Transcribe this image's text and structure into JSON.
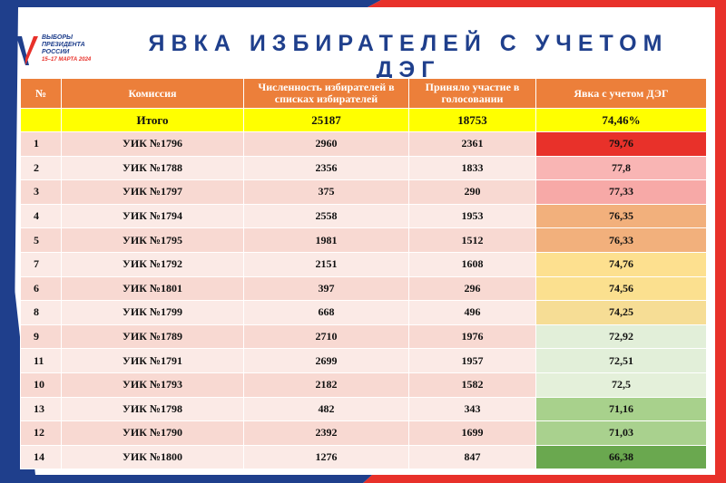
{
  "logo": {
    "lines": [
      "ВЫБОРЫ",
      "ПРЕЗИДЕНТА",
      "РОССИИ"
    ],
    "date": "15–17 МАРТА 2024"
  },
  "title": "ЯВКА ИЗБИРАТЕЛЕЙ С УЧЕТОМ ДЭГ",
  "table": {
    "header": [
      "№",
      "Комиссия",
      "Численность избирателей в списках избирателей",
      "Приняло участие в голосовании",
      "Явка с учетом ДЭГ"
    ],
    "total": [
      "",
      "Итого",
      "25187",
      "18753",
      "74,46%"
    ],
    "rows": [
      [
        "1",
        "УИК №1796",
        "2960",
        "2361",
        "79,76"
      ],
      [
        "2",
        "УИК №1788",
        "2356",
        "1833",
        "77,8"
      ],
      [
        "3",
        "УИК №1797",
        "375",
        "290",
        "77,33"
      ],
      [
        "4",
        "УИК №1794",
        "2558",
        "1953",
        "76,35"
      ],
      [
        "5",
        "УИК №1795",
        "1981",
        "1512",
        "76,33"
      ],
      [
        "7",
        "УИК №1792",
        "2151",
        "1608",
        "74,76"
      ],
      [
        "6",
        "УИК №1801",
        "397",
        "296",
        "74,56"
      ],
      [
        "8",
        "УИК №1799",
        "668",
        "496",
        "74,25"
      ],
      [
        "9",
        "УИК №1789",
        "2710",
        "1976",
        "72,92"
      ],
      [
        "11",
        "УИК №1791",
        "2699",
        "1957",
        "72,51"
      ],
      [
        "10",
        "УИК №1793",
        "2182",
        "1582",
        "72,5"
      ],
      [
        "13",
        "УИК №1798",
        "482",
        "343",
        "71,16"
      ],
      [
        "12",
        "УИК №1790",
        "2392",
        "1699",
        "71,03"
      ],
      [
        "14",
        "УИК №1800",
        "1276",
        "847",
        "66,38"
      ]
    ],
    "turnout_colors": [
      "#e8312a",
      "#f9b5b4",
      "#f7a9a7",
      "#f2b07c",
      "#f2b07c",
      "#fde08f",
      "#fbe08f",
      "#f6dd95",
      "#e2efd9",
      "#e2efd9",
      "#e4f0da",
      "#a8d18c",
      "#a9d18e",
      "#6aa84f"
    ]
  }
}
